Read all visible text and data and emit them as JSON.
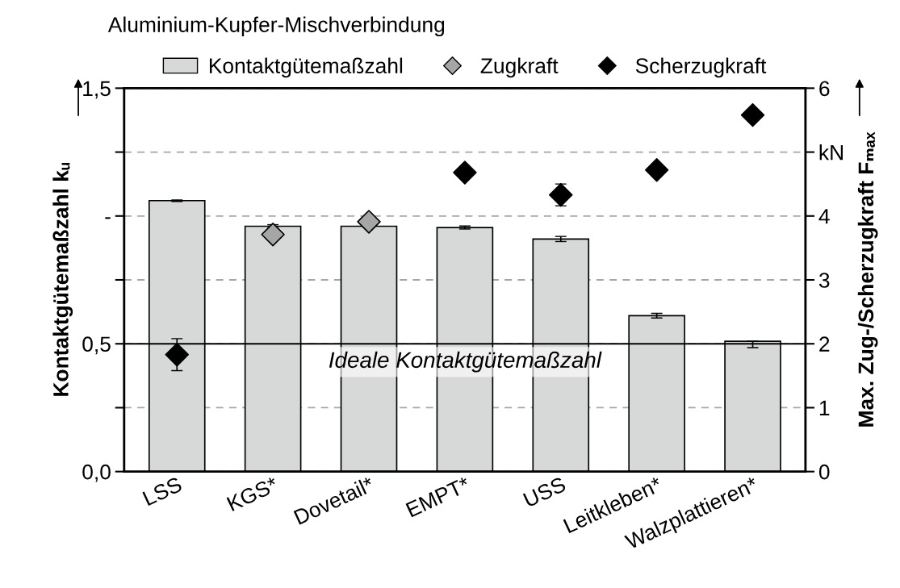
{
  "chart_data": {
    "type": "bar",
    "title": "Aluminium-Kupfer-Mischverbindung",
    "categories": [
      "LSS",
      "KGS*",
      "Dovetail*",
      "EMPT*",
      "USS",
      "Leitkleben*",
      "Walzplattieren*"
    ],
    "series": [
      {
        "name": "Kontaktgütemaßzahl",
        "color": "#d6d9d8",
        "values": [
          1.06,
          0.96,
          0.96,
          0.955,
          0.91,
          0.61,
          0.51
        ],
        "errors": [
          0.003,
          0.006,
          null,
          0.006,
          0.01,
          0.009,
          [
            0.485,
            0.51
          ]
        ]
      },
      {
        "name": "Zugkraft",
        "type": "scatter",
        "axis": "y2",
        "color": "#a6a6a6",
        "values": [
          null,
          3.71,
          3.91,
          null,
          null,
          null,
          null
        ]
      },
      {
        "name": "Scherzugkraft",
        "type": "scatter",
        "axis": "y2",
        "color": "#000000",
        "values": [
          1.83,
          null,
          null,
          4.68,
          4.33,
          4.72,
          5.58
        ],
        "errors": [
          0.25,
          null,
          null,
          null,
          0.17,
          null,
          null
        ]
      }
    ],
    "ylabel": "Kontaktgütemaßzahl kᵤ",
    "y2label": "Max. Zug-/Scherzugkraft Fₘₐₓ",
    "ylim": [
      0,
      1.5
    ],
    "yticks": [
      {
        "value": 0,
        "label": "0,0"
      },
      {
        "value": 0.25,
        "label": null
      },
      {
        "value": 0.5,
        "label": "0,5"
      },
      {
        "value": 0.75,
        "label": null
      },
      {
        "value": 1.0,
        "label": "-"
      },
      {
        "value": 1.25,
        "label": null
      },
      {
        "value": 1.5,
        "label": "1,5"
      }
    ],
    "y2lim": [
      0,
      6
    ],
    "y2ticks": [
      0,
      1,
      2,
      3,
      4,
      {
        "value": 5,
        "label": "kN"
      },
      6
    ],
    "ref_lines": [
      {
        "axis": "y",
        "value": 0.5,
        "label": "Ideale Kontaktgütemaßzahl",
        "color": "#000000",
        "line_style": "solid"
      }
    ],
    "grid": "y",
    "legend": "top",
    "marker": "diamond"
  }
}
